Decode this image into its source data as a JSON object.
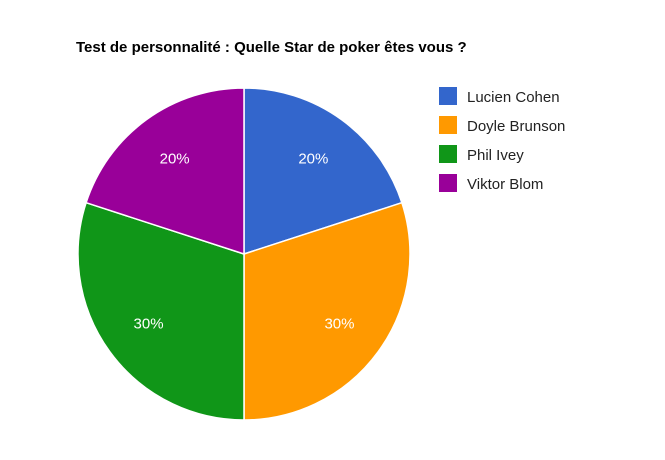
{
  "chart_data": {
    "type": "pie",
    "title": "Test de personnalité : Quelle Star de poker êtes vous ?",
    "categories": [
      "Lucien Cohen",
      "Doyle Brunson",
      "Phil Ivey",
      "Viktor Blom"
    ],
    "values": [
      20,
      30,
      30,
      20
    ],
    "labels": [
      "20%",
      "30%",
      "30%",
      "20%"
    ],
    "colors": [
      "#3366cc",
      "#ff9900",
      "#109618",
      "#990099"
    ],
    "legend_position": "right",
    "start_angle": "12 o'clock, clockwise"
  }
}
